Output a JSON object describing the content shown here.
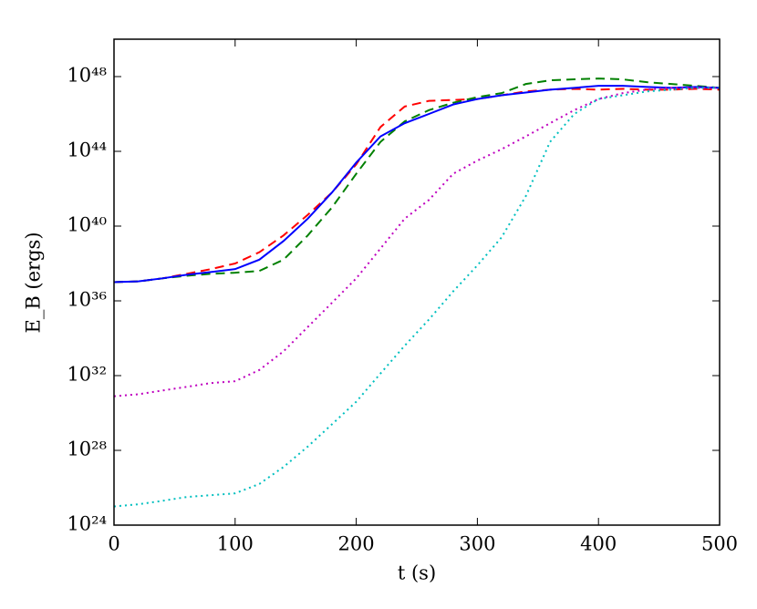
{
  "chart_data": {
    "type": "line",
    "xlabel": "t (s)",
    "ylabel": "E_B (ergs)",
    "x": [
      0,
      20,
      40,
      60,
      80,
      100,
      120,
      140,
      160,
      180,
      200,
      220,
      240,
      260,
      280,
      300,
      320,
      340,
      360,
      380,
      400,
      420,
      440,
      460,
      480,
      500
    ],
    "series": [
      {
        "color": "#ff0000",
        "dash": "dashed",
        "values": [
          1e+37,
          1.1e+37,
          1.6e+37,
          2.8e+37,
          5e+37,
          1e+38,
          4e+38,
          3.2e+39,
          4e+40,
          6.3e+41,
          2e+43,
          2e+45,
          2.5e+46,
          5e+46,
          5.6e+46,
          6.3e+46,
          1e+47,
          1.6e+47,
          2e+47,
          2.2e+47,
          2e+47,
          2.2e+47,
          2e+47,
          2e+47,
          2.2e+47,
          2e+47
        ]
      },
      {
        "color": "#008000",
        "dash": "dashed",
        "values": [
          1e+37,
          1.1e+37,
          1.6e+37,
          2.2e+37,
          2.8e+37,
          3.2e+37,
          4e+37,
          1.6e+38,
          3.2e+39,
          1e+41,
          6.3e+42,
          3.2e+44,
          4e+45,
          1.6e+46,
          4e+46,
          7.9e+46,
          1.3e+47,
          4e+47,
          6.3e+47,
          7.1e+47,
          7.9e+47,
          7.1e+47,
          5e+47,
          4e+47,
          3.2e+47,
          2.5e+47
        ]
      },
      {
        "color": "#0000ff",
        "dash": "solid",
        "values": [
          1e+37,
          1.1e+37,
          1.6e+37,
          2.5e+37,
          3.5e+37,
          5e+37,
          1.6e+38,
          1.6e+39,
          2.5e+40,
          6.3e+41,
          2.5e+43,
          6.3e+44,
          3.2e+45,
          1e+46,
          3.2e+46,
          6.3e+46,
          1e+47,
          1.4e+47,
          2e+47,
          2.5e+47,
          3.2e+47,
          3.2e+47,
          2.8e+47,
          2.5e+47,
          2.8e+47,
          2.5e+47
        ]
      },
      {
        "color": "#bf00bf",
        "dash": "dotted",
        "values": [
          7.9e+30,
          1e+31,
          1.6e+31,
          2.5e+31,
          4e+31,
          5e+31,
          2e+32,
          2e+33,
          4e+34,
          7.9e+35,
          1.6e+37,
          6.3e+38,
          2.5e+40,
          2.5e+41,
          6.3e+42,
          3.2e+43,
          1.3e+44,
          6.3e+44,
          3.2e+45,
          1.6e+46,
          6.3e+46,
          1.3e+47,
          2e+47,
          2.5e+47,
          2.5e+47,
          2.5e+47
        ]
      },
      {
        "color": "#00bfbf",
        "dash": "dotted",
        "values": [
          1e+25,
          1.3e+25,
          2e+25,
          3.2e+25,
          4e+25,
          5e+25,
          1.6e+26,
          1.3e+27,
          1.6e+28,
          2.5e+29,
          4e+30,
          1.3e+32,
          4e+33,
          1e+35,
          3.2e+36,
          7.9e+37,
          2.5e+39,
          4e+41,
          3.2e+44,
          1e+46,
          6.3e+46,
          1e+47,
          1.6e+47,
          2e+47,
          2.5e+47,
          2.5e+47
        ]
      }
    ],
    "xlim": [
      0,
      500
    ],
    "xticks": [
      0,
      100,
      200,
      300,
      400,
      500
    ],
    "ylim": [
      1e+24,
      1e+50
    ],
    "ylog": true,
    "yticks": [
      {
        "value": 1e+24,
        "label": "10²⁴"
      },
      {
        "value": 1e+28,
        "label": "10²⁸"
      },
      {
        "value": 1e+32,
        "label": "10³²"
      },
      {
        "value": 1e+36,
        "label": "10³⁶"
      },
      {
        "value": 1e+40,
        "label": "10⁴⁰"
      },
      {
        "value": 1e+44,
        "label": "10⁴⁴"
      },
      {
        "value": 1e+48,
        "label": "10⁴⁸"
      }
    ]
  }
}
